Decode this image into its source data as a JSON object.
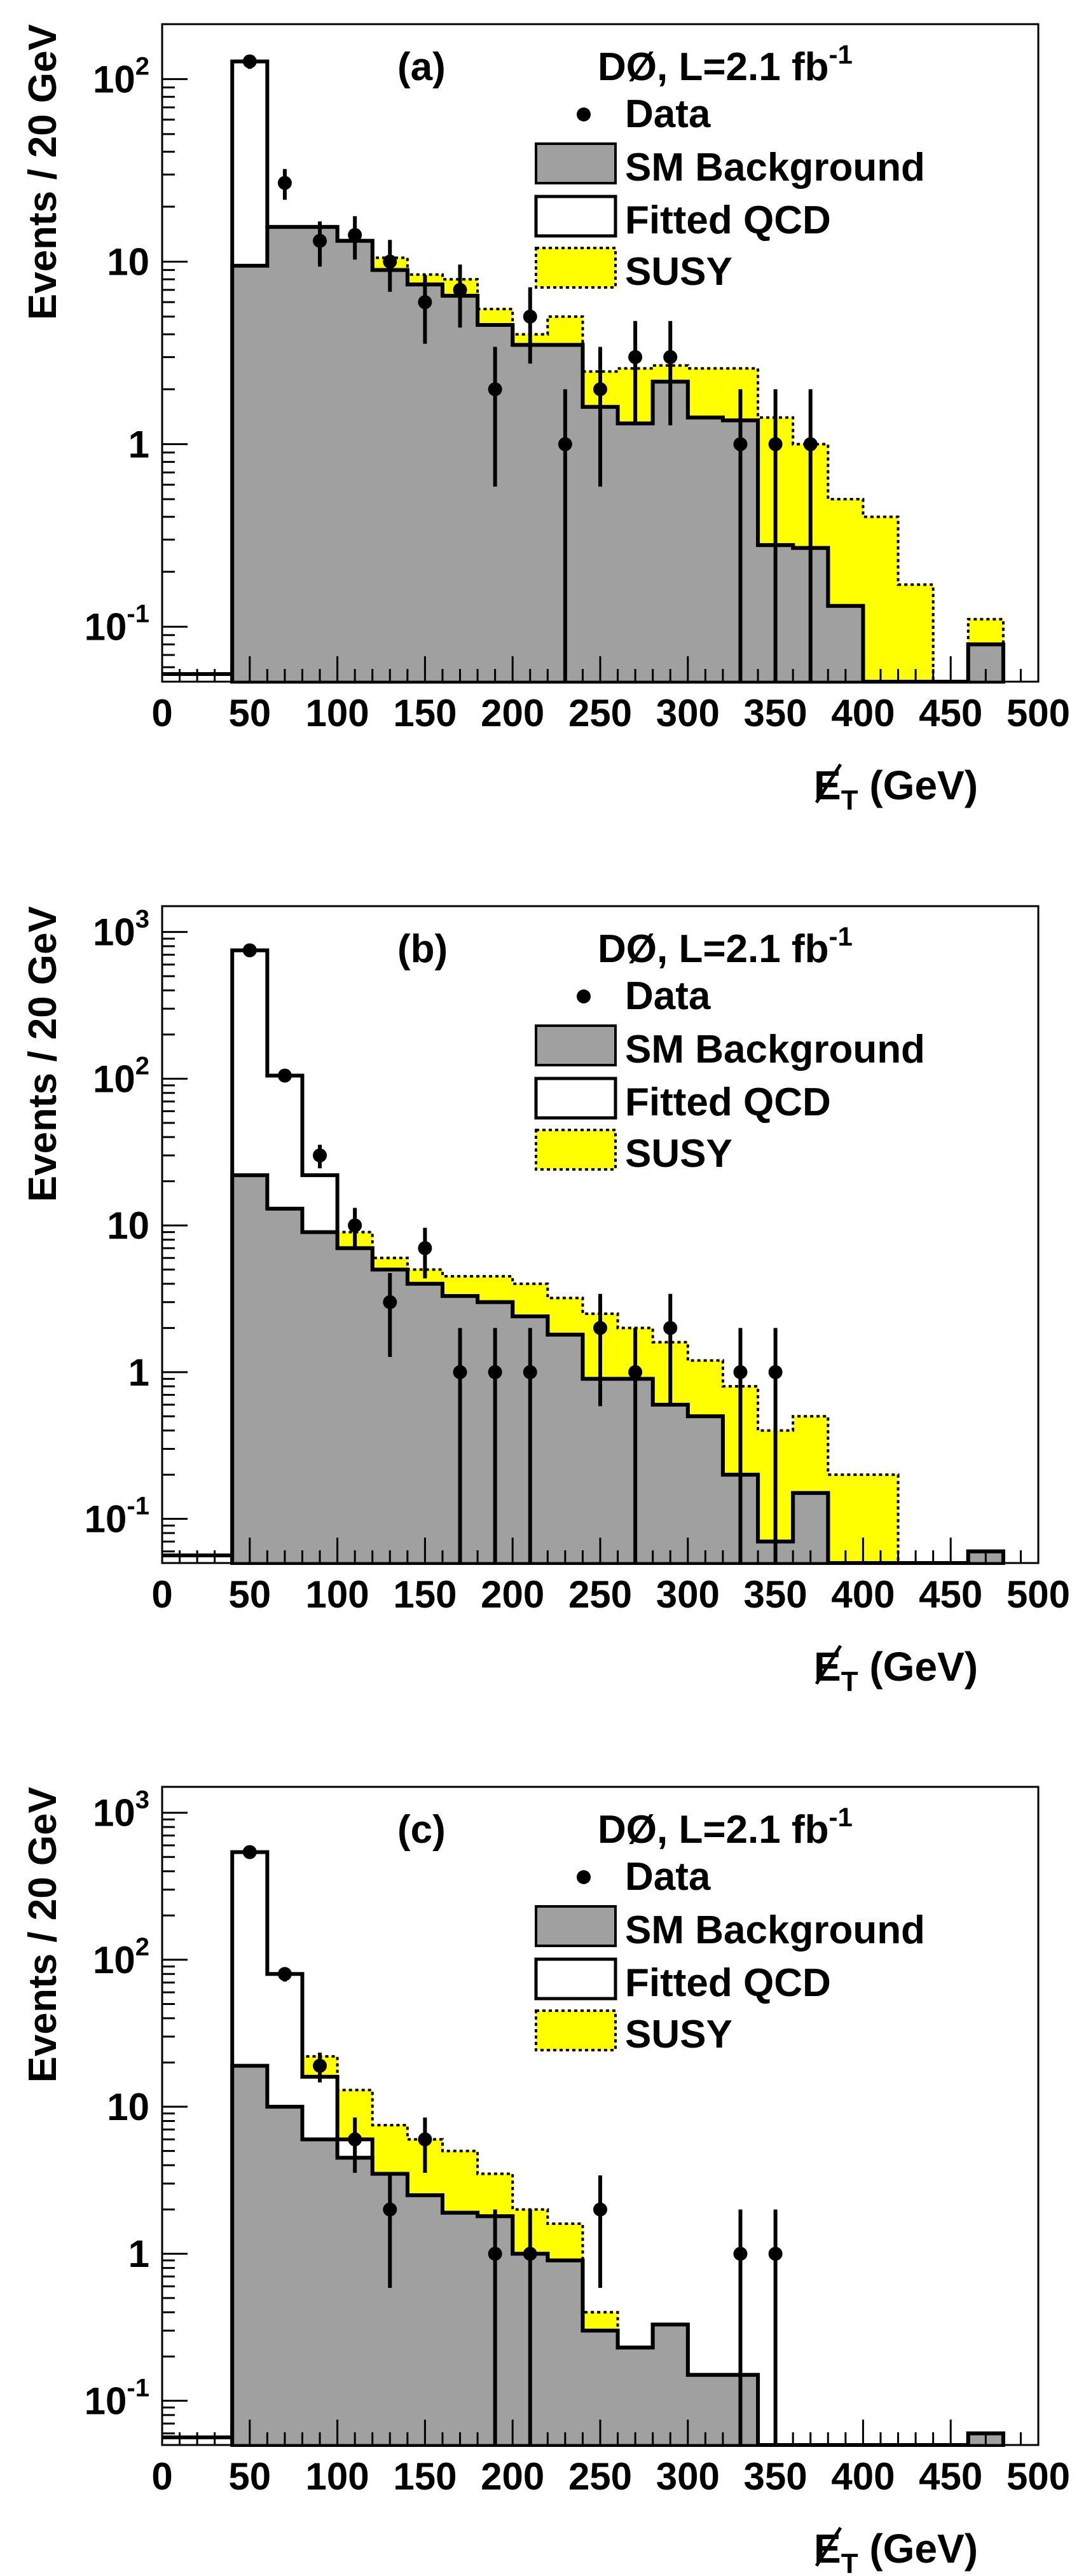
{
  "figure": {
    "y_axis_label": "Events / 20 GeV",
    "x_axis_label_main": "E",
    "x_axis_label_sub": "T",
    "x_axis_label_unit": " (GeV)"
  },
  "legend": {
    "experiment_prefix": "DØ, L=2.1 fb",
    "experiment_exponent": "-1",
    "entries": [
      "Data",
      "SM Background",
      "Fitted QCD",
      "SUSY"
    ]
  },
  "colors": {
    "sm_background": "#a0a0a0",
    "susy": "#ffff00",
    "fitted_qcd": "#ffffff",
    "line": "#000000"
  },
  "chart_data": [
    {
      "type": "bar",
      "panel": "(a)",
      "xlabel": "E_T (GeV)",
      "ylabel": "Events / 20 GeV",
      "xlim": [
        0,
        500
      ],
      "ylim_log": [
        0.05,
        200
      ],
      "x_ticks": [
        0,
        50,
        100,
        150,
        200,
        250,
        300,
        350,
        400,
        450,
        500
      ],
      "y_ticks": [
        {
          "v": 0.1,
          "b": "10",
          "e": "-1"
        },
        {
          "v": 1,
          "b": "1",
          "e": ""
        },
        {
          "v": 10,
          "b": "10",
          "e": ""
        },
        {
          "v": 100,
          "b": "10",
          "e": "2"
        }
      ],
      "bin_edges": [
        40,
        60,
        80,
        100,
        120,
        140,
        160,
        180,
        200,
        220,
        240,
        260,
        280,
        300,
        320,
        340,
        360,
        380,
        400,
        420,
        440,
        460,
        480
      ],
      "series": [
        {
          "name": "SM Background",
          "values": [
            9.5,
            15.5,
            15.5,
            13,
            9,
            7.5,
            6.5,
            4.5,
            3.5,
            3.5,
            1.6,
            1.3,
            2.2,
            1.4,
            1.35,
            0.28,
            0.27,
            0.13,
            0.04,
            0.03,
            0.03,
            0.08
          ]
        },
        {
          "name": "Fitted QCD",
          "values": [
            125,
            15.5,
            15.5,
            13,
            9,
            7.5,
            6.5,
            4.5,
            3.5,
            3.5,
            1.6,
            1.3,
            2.2,
            1.4,
            1.35,
            0.28,
            0.27,
            0.13,
            0.04,
            0.03,
            0.03,
            0.08
          ]
        },
        {
          "name": "SUSY",
          "values": [
            125,
            15.5,
            15.5,
            13,
            10.5,
            8.5,
            8,
            5.5,
            4,
            5,
            2.5,
            2.6,
            2.7,
            2.6,
            2.6,
            1.4,
            1.0,
            0.5,
            0.4,
            0.17,
            0.04,
            0.11
          ]
        }
      ],
      "data_points": {
        "x": [
          50,
          70,
          90,
          110,
          130,
          150,
          170,
          190,
          210,
          230,
          250,
          270,
          290,
          330,
          350,
          370
        ],
        "y": [
          125,
          27,
          13,
          14,
          10,
          6,
          7,
          2,
          5,
          1,
          2,
          3,
          3,
          1,
          1,
          1
        ]
      }
    },
    {
      "type": "bar",
      "panel": "(b)",
      "xlabel": "E_T (GeV)",
      "ylabel": "Events / 20 GeV",
      "xlim": [
        0,
        500
      ],
      "ylim_log": [
        0.05,
        1500
      ],
      "x_ticks": [
        0,
        50,
        100,
        150,
        200,
        250,
        300,
        350,
        400,
        450,
        500
      ],
      "y_ticks": [
        {
          "v": 0.1,
          "b": "10",
          "e": "-1"
        },
        {
          "v": 1,
          "b": "1",
          "e": ""
        },
        {
          "v": 10,
          "b": "10",
          "e": ""
        },
        {
          "v": 100,
          "b": "10",
          "e": "2"
        },
        {
          "v": 1000,
          "b": "10",
          "e": "3"
        }
      ],
      "bin_edges": [
        40,
        60,
        80,
        100,
        120,
        140,
        160,
        180,
        200,
        220,
        240,
        260,
        280,
        300,
        320,
        340,
        360,
        380,
        400,
        420,
        440,
        460,
        480
      ],
      "series": [
        {
          "name": "SM Background",
          "values": [
            22,
            13,
            9,
            7,
            5,
            4,
            3.3,
            3,
            2.4,
            1.8,
            0.9,
            0.9,
            0.6,
            0.5,
            0.2,
            0.07,
            0.15,
            0.03,
            0.03,
            0.03,
            0.03,
            0.06
          ]
        },
        {
          "name": "Fitted QCD",
          "values": [
            750,
            105,
            22,
            7,
            5,
            4,
            3.3,
            3,
            2.4,
            1.8,
            0.9,
            0.9,
            0.6,
            0.5,
            0.2,
            0.07,
            0.15,
            0.03,
            0.03,
            0.03,
            0.03,
            0.06
          ]
        },
        {
          "name": "SUSY",
          "values": [
            750,
            105,
            22,
            9,
            6,
            5,
            4.5,
            4.5,
            4,
            3.2,
            2.5,
            2,
            1.6,
            1.2,
            0.8,
            0.4,
            0.5,
            0.2,
            0.2,
            0.03,
            0.03,
            0.06
          ]
        }
      ],
      "data_points": {
        "x": [
          50,
          70,
          90,
          110,
          130,
          150,
          170,
          190,
          210,
          250,
          270,
          290,
          330,
          350
        ],
        "y": [
          750,
          105,
          30,
          10,
          3,
          7,
          1,
          1,
          1,
          2,
          1,
          2,
          1,
          1
        ]
      }
    },
    {
      "type": "bar",
      "panel": "(c)",
      "xlabel": "E_T (GeV)",
      "ylabel": "Events / 20 GeV",
      "xlim": [
        0,
        500
      ],
      "ylim_log": [
        0.05,
        1500
      ],
      "x_ticks": [
        0,
        50,
        100,
        150,
        200,
        250,
        300,
        350,
        400,
        450,
        500
      ],
      "y_ticks": [
        {
          "v": 0.1,
          "b": "10",
          "e": "-1"
        },
        {
          "v": 1,
          "b": "1",
          "e": ""
        },
        {
          "v": 10,
          "b": "10",
          "e": ""
        },
        {
          "v": 100,
          "b": "10",
          "e": "2"
        },
        {
          "v": 1000,
          "b": "10",
          "e": "3"
        }
      ],
      "bin_edges": [
        40,
        60,
        80,
        100,
        120,
        140,
        160,
        180,
        200,
        220,
        240,
        260,
        280,
        300,
        320,
        340,
        360,
        380,
        400,
        420,
        440,
        460,
        480
      ],
      "series": [
        {
          "name": "SM Background",
          "values": [
            19,
            10,
            6,
            4.5,
            3.5,
            2.5,
            1.9,
            1.8,
            1,
            0.9,
            0.3,
            0.23,
            0.33,
            0.15,
            0.15,
            0.03,
            0.03,
            0.03,
            0.03,
            0.03,
            0.03,
            0.06
          ]
        },
        {
          "name": "Fitted QCD",
          "values": [
            540,
            80,
            16,
            6,
            3.5,
            2.5,
            1.9,
            1.8,
            1,
            0.9,
            0.3,
            0.23,
            0.33,
            0.15,
            0.15,
            0.03,
            0.03,
            0.03,
            0.03,
            0.03,
            0.03,
            0.06
          ]
        },
        {
          "name": "SUSY",
          "values": [
            540,
            80,
            22,
            13,
            7.5,
            6,
            5,
            3.5,
            2,
            1.6,
            0.4,
            0.23,
            0.33,
            0.15,
            0.15,
            0.03,
            0.03,
            0.03,
            0.03,
            0.03,
            0.03,
            0.06
          ]
        }
      ],
      "data_points": {
        "x": [
          50,
          70,
          90,
          110,
          130,
          150,
          190,
          210,
          250,
          330,
          350
        ],
        "y": [
          540,
          80,
          19,
          6,
          2,
          6,
          1,
          1,
          2,
          1,
          1
        ]
      }
    }
  ]
}
